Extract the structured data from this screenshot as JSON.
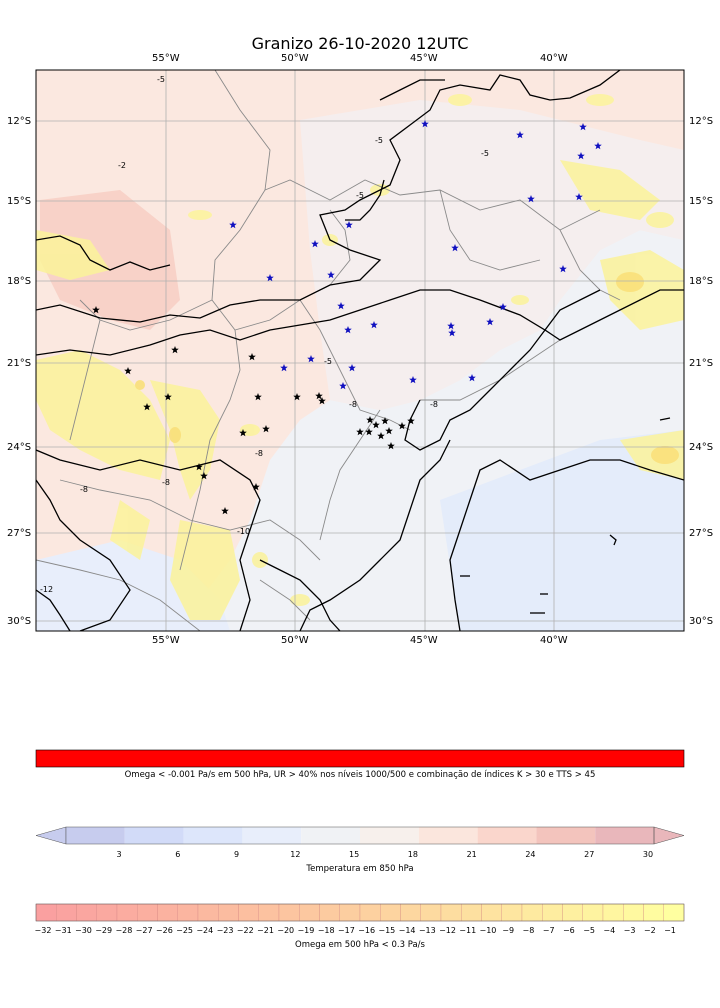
{
  "title": "Granizo 26-10-2020 12UTC",
  "map": {
    "lon_labels": [
      "55°W",
      "50°W",
      "45°W",
      "40°W"
    ],
    "lat_labels": [
      "12°S",
      "15°S",
      "18°S",
      "21°S",
      "24°S",
      "27°S",
      "30°S"
    ],
    "extent": {
      "lon_min": -60,
      "lon_max": -35,
      "lat_min": -30.3,
      "lat_max": -10.0
    },
    "contour_labels": [
      "-5",
      "-2",
      "-5",
      "-5",
      "-5",
      "-5",
      "-8",
      "-8",
      "-8",
      "-8",
      "-8",
      "-10",
      "-12"
    ],
    "markers": {
      "blue_star_color": "#1010c0",
      "black_star_color": "#000000"
    }
  },
  "colorbars": {
    "hail": {
      "color": "#ff0000",
      "caption": "Omega < -0.001 Pa/s em 500 hPa, UR > 40% nos níveis 1000/500 e combinação de índices K > 30 e TTS > 45"
    },
    "temperature": {
      "ticks": [
        "3",
        "6",
        "9",
        "12",
        "15",
        "18",
        "21",
        "24",
        "27",
        "30"
      ],
      "caption": "Temperatura em 850 hPa",
      "colors": [
        "#c7ccee",
        "#d2dbf8",
        "#dde6fb",
        "#e8eefb",
        "#f0f2f5",
        "#f7f0ec",
        "#fbe6dd",
        "#fad6cc",
        "#f3c4bd",
        "#e9b7bb"
      ]
    },
    "omega": {
      "ticks": [
        "-32",
        "-31",
        "-30",
        "-29",
        "-28",
        "-27",
        "-26",
        "-25",
        "-24",
        "-23",
        "-22",
        "-21",
        "-20",
        "-19",
        "-18",
        "-17",
        "-16",
        "-15",
        "-14",
        "-13",
        "-12",
        "-11",
        "-10",
        "-9",
        "-8",
        "-7",
        "-6",
        "-5",
        "-4",
        "-3",
        "-2",
        "-1"
      ],
      "caption": "Omega em 500 hPa < 0.3 Pa/s"
    }
  }
}
